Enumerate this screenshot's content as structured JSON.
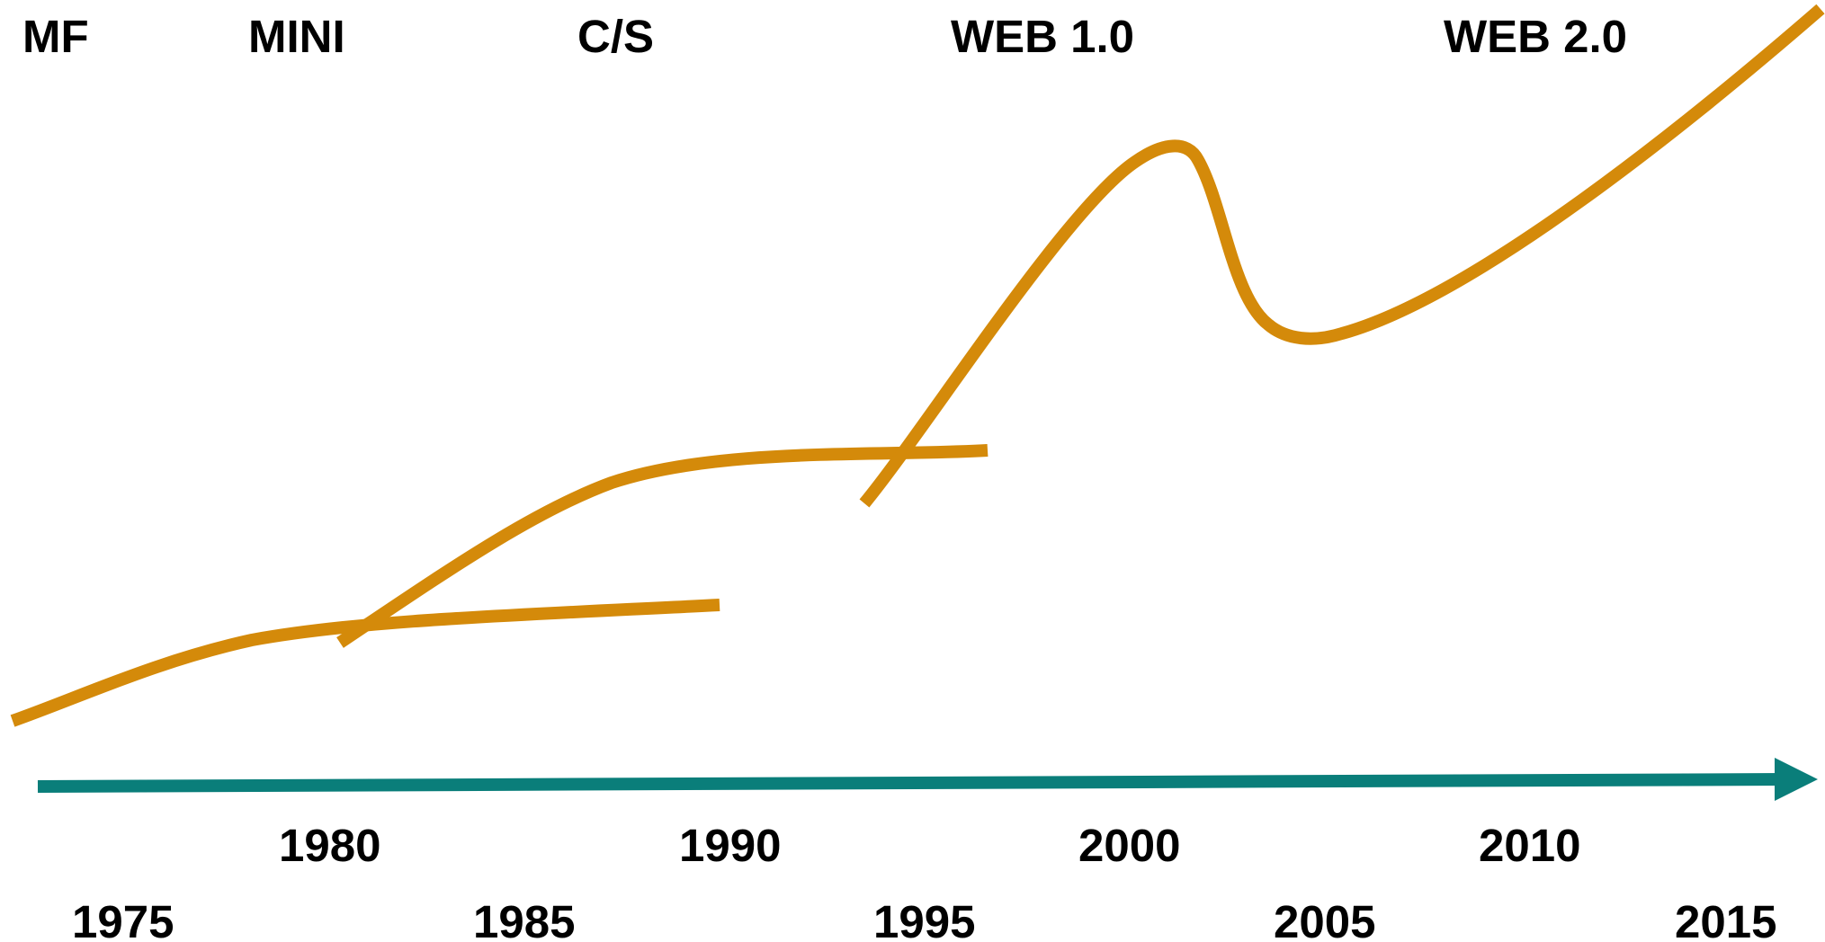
{
  "eras": [
    {
      "id": "mf",
      "label": "MF"
    },
    {
      "id": "mini",
      "label": "MINI"
    },
    {
      "id": "cs",
      "label": "C/S"
    },
    {
      "id": "web1",
      "label": "WEB 1.0"
    },
    {
      "id": "web2",
      "label": "WEB 2.0"
    }
  ],
  "timeline": {
    "years_upper": [
      "1980",
      "1990",
      "2000",
      "2010"
    ],
    "years_lower": [
      "1975",
      "1985",
      "1995",
      "2005",
      "2015"
    ]
  },
  "colors": {
    "curve": "#D48A0A",
    "timeline": "#0A7E7A",
    "text": "#000000",
    "background": "#FFFFFF"
  }
}
